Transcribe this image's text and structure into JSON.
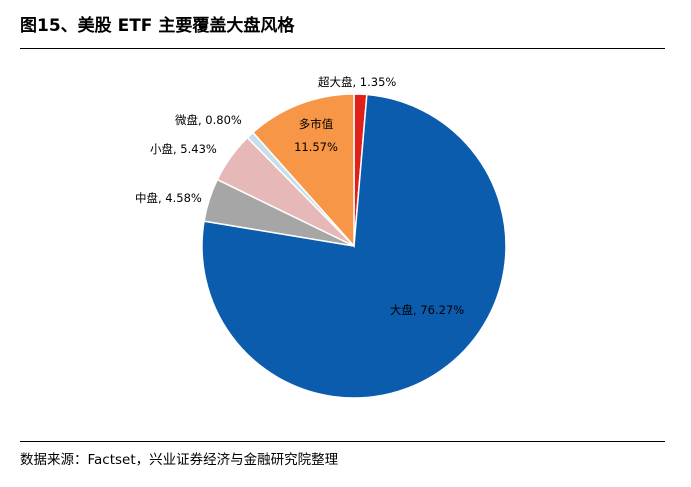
{
  "figure": {
    "title": "图15、美股 ETF 主要覆盖大盘风格",
    "source": "数据来源：Factset，兴业证券经济与金融研究院整理"
  },
  "chart_data": {
    "type": "pie",
    "title": "",
    "legend": "none",
    "slices": [
      {
        "key": "super_large",
        "name": "超大盘",
        "value": 1.35,
        "label": "1.35%",
        "color": "#e0201b"
      },
      {
        "key": "large",
        "name": "大盘",
        "value": 76.27,
        "label": "76.27%",
        "color": "#0b5cad"
      },
      {
        "key": "mid",
        "name": "中盘",
        "value": 4.58,
        "label": "4.58%",
        "color": "#a6a6a6"
      },
      {
        "key": "small",
        "name": "小盘",
        "value": 5.43,
        "label": "5.43%",
        "color": "#e6b9b8"
      },
      {
        "key": "micro",
        "name": "微盘",
        "value": 0.8,
        "label": "0.80%",
        "color": "#c5e0ea"
      },
      {
        "key": "multi",
        "name": "多市值",
        "value": 11.57,
        "label": "11.57%",
        "color": "#f79646"
      }
    ]
  }
}
